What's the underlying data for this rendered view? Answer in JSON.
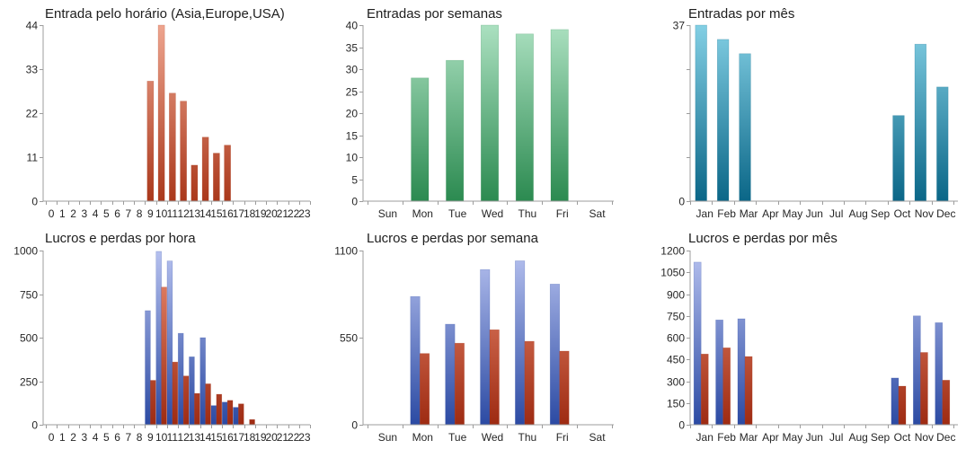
{
  "chart_data": [
    {
      "type": "bar",
      "title": "Entrada pelo horário (Asia,Europe,USA)",
      "categories": [
        "0",
        "1",
        "2",
        "3",
        "4",
        "5",
        "6",
        "7",
        "8",
        "9",
        "10",
        "11",
        "12",
        "13",
        "14",
        "15",
        "16",
        "17",
        "18",
        "19",
        "20",
        "21",
        "22",
        "23"
      ],
      "series": [
        {
          "values": [
            0,
            0,
            0,
            0,
            0,
            0,
            0,
            0,
            0,
            30,
            44,
            27,
            25,
            9,
            16,
            12,
            14,
            0,
            0,
            0,
            0,
            0,
            0,
            0
          ],
          "color_top": "#eea58f",
          "color_bottom": "#aa381b"
        }
      ],
      "ylim": [
        0,
        44
      ],
      "yticks": [
        0,
        11,
        22,
        33,
        44
      ],
      "grid": false,
      "legend": "none"
    },
    {
      "type": "bar",
      "title": "Entradas por semanas",
      "categories": [
        "Sun",
        "Mon",
        "Tue",
        "Wed",
        "Thu",
        "Fri",
        "Sat"
      ],
      "series": [
        {
          "values": [
            0,
            28,
            32,
            40,
            38,
            39,
            0
          ],
          "color_top": "#abe0c0",
          "color_bottom": "#2b8a50"
        }
      ],
      "ylim": [
        0,
        40
      ],
      "yticks": [
        0,
        5,
        10,
        15,
        20,
        25,
        30,
        35,
        40
      ],
      "grid": false,
      "legend": "none"
    },
    {
      "type": "bar",
      "title": "Entradas por mês",
      "categories": [
        "Jan",
        "Feb",
        "Mar",
        "Apr",
        "May",
        "Jun",
        "Jul",
        "Aug",
        "Sep",
        "Oct",
        "Nov",
        "Dec"
      ],
      "series": [
        {
          "values": [
            37,
            34,
            31,
            0,
            0,
            0,
            0,
            0,
            0,
            18,
            33,
            24
          ],
          "color_top": "#83cfe4",
          "color_bottom": "#0a6687"
        }
      ],
      "ylim": [
        0,
        37
      ],
      "yticks": [
        0,
        37
      ],
      "yticks_unlabeled": [
        9.25,
        18.5,
        27.75
      ],
      "grid": false,
      "legend": "none"
    },
    {
      "type": "bar",
      "title": "Lucros e perdas por hora",
      "categories": [
        "0",
        "1",
        "2",
        "3",
        "4",
        "5",
        "6",
        "7",
        "8",
        "9",
        "10",
        "11",
        "12",
        "13",
        "14",
        "15",
        "16",
        "17",
        "18",
        "19",
        "20",
        "21",
        "22",
        "23"
      ],
      "series": [
        {
          "values": [
            0,
            0,
            0,
            0,
            0,
            0,
            0,
            0,
            0,
            655,
            995,
            940,
            525,
            390,
            500,
            110,
            130,
            100,
            0,
            0,
            0,
            0,
            0,
            0
          ],
          "color_top": "#b6c1ef",
          "color_bottom": "#2b4aa3"
        },
        {
          "values": [
            0,
            0,
            0,
            0,
            0,
            0,
            0,
            0,
            0,
            255,
            790,
            360,
            280,
            180,
            235,
            175,
            140,
            120,
            30,
            0,
            0,
            0,
            0,
            0
          ],
          "color_top": "#ec8d72",
          "color_bottom": "#9e2b12"
        }
      ],
      "ylim": [
        0,
        1000
      ],
      "yticks": [
        0,
        250,
        500,
        750,
        1000
      ],
      "grid": false,
      "legend": "none"
    },
    {
      "type": "bar",
      "title": "Lucros e perdas por semana",
      "categories": [
        "Sun",
        "Mon",
        "Tue",
        "Wed",
        "Thu",
        "Fri",
        "Sat"
      ],
      "series": [
        {
          "values": [
            0,
            810,
            635,
            980,
            1035,
            888,
            0
          ],
          "color_top": "#b6c1ef",
          "color_bottom": "#2b4aa3"
        },
        {
          "values": [
            0,
            450,
            515,
            600,
            527,
            465,
            0
          ],
          "color_top": "#ec8d72",
          "color_bottom": "#9e2b12"
        }
      ],
      "ylim": [
        0,
        1100
      ],
      "yticks": [
        0,
        550,
        1100
      ],
      "grid": false,
      "legend": "none"
    },
    {
      "type": "bar",
      "title": "Lucros e perdas por mês",
      "categories": [
        "Jan",
        "Feb",
        "Mar",
        "Apr",
        "May",
        "Jun",
        "Jul",
        "Aug",
        "Sep",
        "Oct",
        "Nov",
        "Dec"
      ],
      "series": [
        {
          "values": [
            1120,
            722,
            730,
            0,
            0,
            0,
            0,
            0,
            0,
            322,
            750,
            703
          ],
          "color_top": "#b6c1ef",
          "color_bottom": "#2b4aa3"
        },
        {
          "values": [
            487,
            530,
            470,
            0,
            0,
            0,
            0,
            0,
            0,
            266,
            498,
            307
          ],
          "color_top": "#ec8d72",
          "color_bottom": "#9e2b12"
        }
      ],
      "ylim": [
        0,
        1200
      ],
      "yticks": [
        0,
        150,
        300,
        450,
        600,
        750,
        900,
        1050,
        1200
      ],
      "grid": false,
      "legend": "none"
    }
  ]
}
